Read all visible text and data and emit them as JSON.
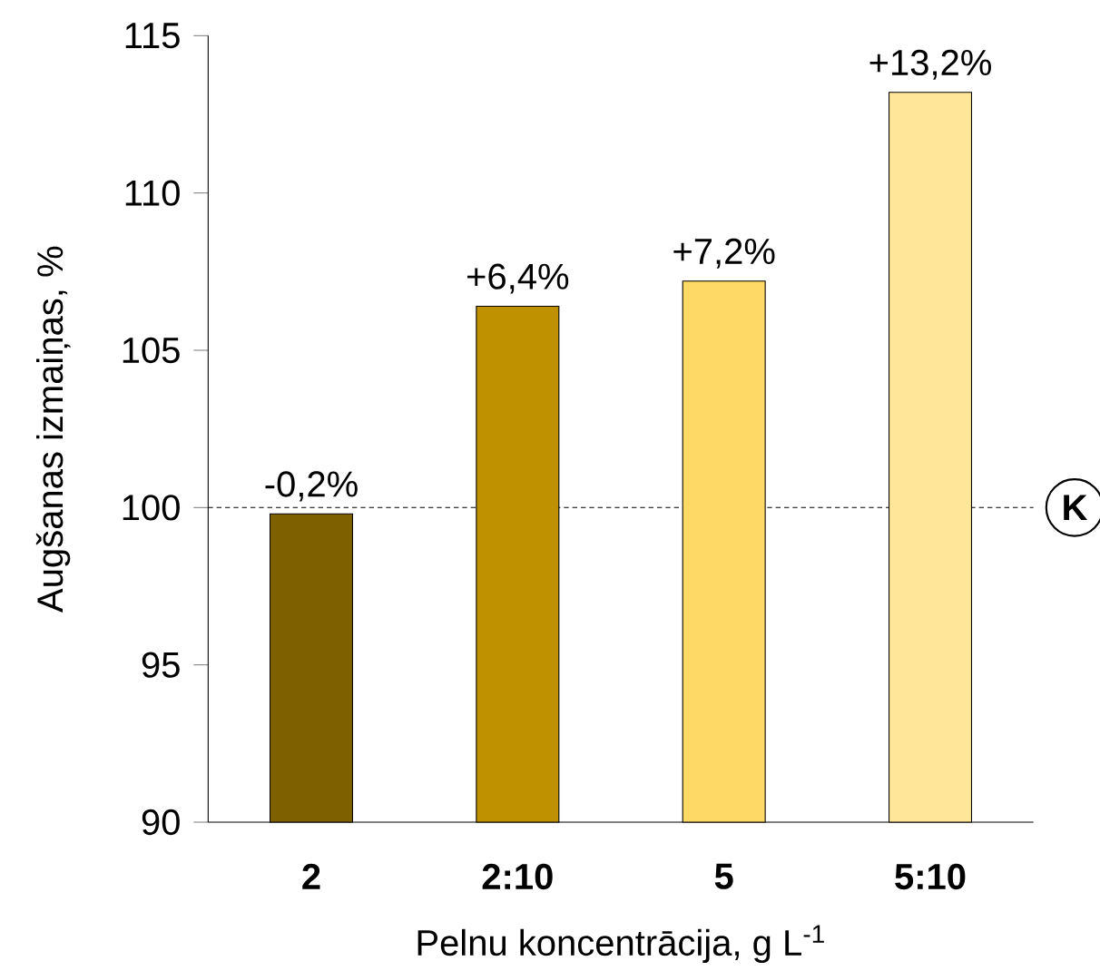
{
  "chart_data": {
    "type": "bar",
    "xlabel": "Pelnu koncentrācija, g L$^{-1}$",
    "ylabel": "Augšanas izmaiņas, %",
    "categories": [
      "2",
      "2:10",
      "5",
      "5:10"
    ],
    "values": [
      99.8,
      106.4,
      107.2,
      113.2
    ],
    "colors": [
      "#7f6000",
      "#bf9000",
      "#ffd966",
      "#ffe699"
    ],
    "annotations": [
      {
        "text": "-0,2%",
        "x": "2",
        "y": 99.8
      },
      {
        "text": "+6,4%",
        "x": "2:10",
        "y": 106.4
      },
      {
        "text": "+7,2%",
        "x": "5",
        "y": 107.2
      },
      {
        "text": "+13,2%",
        "x": "5:10",
        "y": 113.2
      }
    ],
    "ylim": [
      90,
      115
    ],
    "yticks": [
      90,
      95,
      100,
      105,
      110,
      115
    ],
    "ref_lines": [
      {
        "axis": "y",
        "value": 100,
        "label": "K",
        "line_style": "dashed"
      }
    ],
    "grid": false
  }
}
